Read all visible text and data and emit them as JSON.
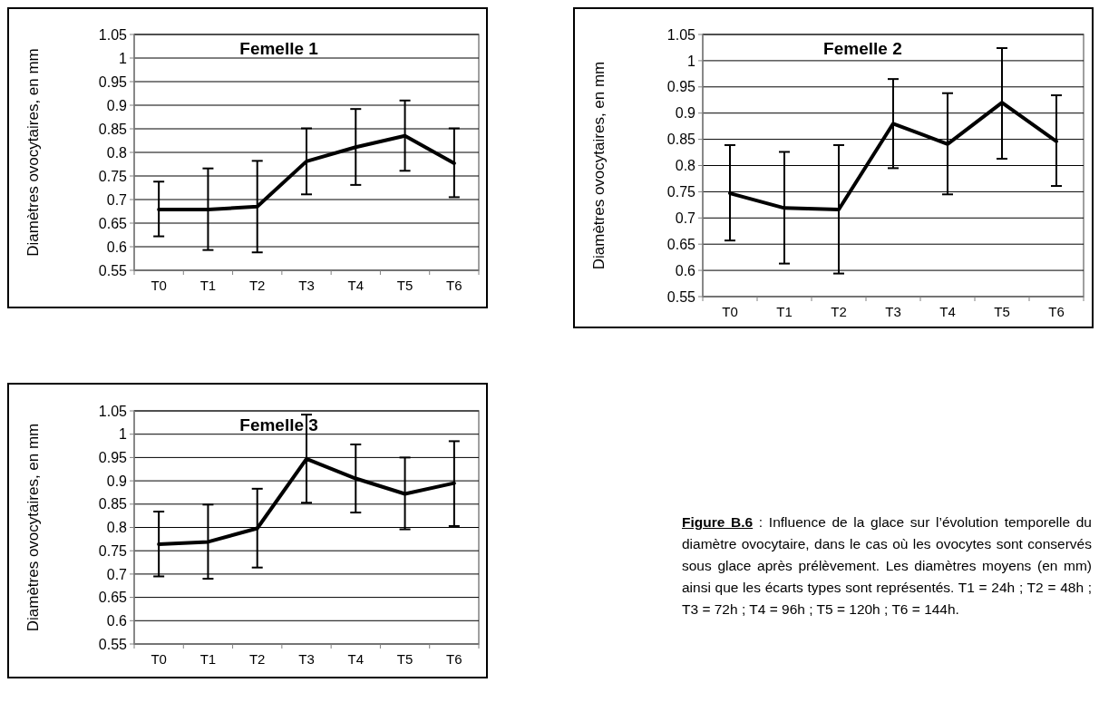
{
  "chart_data": [
    {
      "type": "line",
      "title": "Femelle 1",
      "ylabel": "Diamètres ovocytaires, en mm",
      "categories": [
        "T0",
        "T1",
        "T2",
        "T3",
        "T4",
        "T5",
        "T6"
      ],
      "series": [
        {
          "color": "#000000",
          "values": [
            0.679,
            0.679,
            0.685,
            0.781,
            0.811,
            0.835,
            0.777
          ],
          "errors": [
            [
              0.622,
              0.738
            ],
            [
              0.593,
              0.766
            ],
            [
              0.588,
              0.782
            ],
            [
              0.711,
              0.851
            ],
            [
              0.731,
              0.892
            ],
            [
              0.761,
              0.91
            ],
            [
              0.705,
              0.851
            ]
          ]
        }
      ],
      "ylim": [
        0.55,
        1.05
      ],
      "yticks": [
        0.55,
        0.6,
        0.65,
        0.7,
        0.75,
        0.8,
        0.85,
        0.9,
        0.95,
        1,
        1.05
      ],
      "grid": "y",
      "marker": "none",
      "line_style": "solid"
    },
    {
      "type": "line",
      "title": "Femelle 2",
      "ylabel": "Diamètres ovocytaires, en mm",
      "categories": [
        "T0",
        "T1",
        "T2",
        "T3",
        "T4",
        "T5",
        "T6"
      ],
      "series": [
        {
          "color": "#000000",
          "values": [
            0.747,
            0.719,
            0.716,
            0.88,
            0.841,
            0.92,
            0.846
          ],
          "errors": [
            [
              0.657,
              0.839
            ],
            [
              0.613,
              0.826
            ],
            [
              0.594,
              0.839
            ],
            [
              0.795,
              0.965
            ],
            [
              0.745,
              0.938
            ],
            [
              0.813,
              1.024
            ],
            [
              0.761,
              0.934
            ]
          ]
        }
      ],
      "ylim": [
        0.55,
        1.05
      ],
      "yticks": [
        0.55,
        0.6,
        0.65,
        0.7,
        0.75,
        0.8,
        0.85,
        0.9,
        0.95,
        1,
        1.05
      ],
      "grid": "y",
      "marker": "none",
      "line_style": "solid"
    },
    {
      "type": "line",
      "title": "Femelle 3",
      "ylabel": "Diamètres ovocytaires, en mm",
      "categories": [
        "T0",
        "T1",
        "T2",
        "T3",
        "T4",
        "T5",
        "T6"
      ],
      "series": [
        {
          "color": "#000000",
          "values": [
            0.764,
            0.769,
            0.798,
            0.947,
            0.905,
            0.872,
            0.895
          ],
          "errors": [
            [
              0.695,
              0.834
            ],
            [
              0.69,
              0.849
            ],
            [
              0.714,
              0.883
            ],
            [
              0.853,
              1.042
            ],
            [
              0.832,
              0.978
            ],
            [
              0.796,
              0.95
            ],
            [
              0.803,
              0.985
            ]
          ]
        }
      ],
      "ylim": [
        0.55,
        1.05
      ],
      "yticks": [
        0.55,
        0.6,
        0.65,
        0.7,
        0.75,
        0.8,
        0.85,
        0.9,
        0.95,
        1,
        1.05
      ],
      "grid": "y",
      "marker": "none",
      "line_style": "solid"
    },
    {
      "type": "other",
      "title": "Figure B.6",
      "annotations": [
        ": Influence de la glace sur l’évolution temporelle du diamètre ovocytaire, dans le cas où les ovocytes sont conservés sous glace après prélèvement. Les diamètres moyens (en mm) ainsi que les écarts types sont représentés. T1 = 24h ; T2 = 48h ; T3 = 72h ; T4 = 96h ; T5 = 120h ; T6 = 144h."
      ]
    }
  ]
}
